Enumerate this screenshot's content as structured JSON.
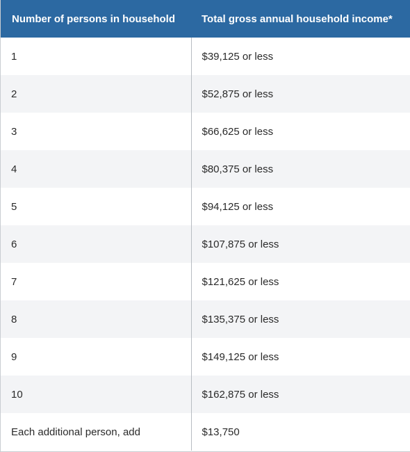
{
  "table": {
    "headers": [
      "Number of persons in household",
      "Total gross annual household income*"
    ],
    "rows": [
      {
        "persons": "1",
        "income": "$39,125 or less"
      },
      {
        "persons": "2",
        "income": "$52,875 or less"
      },
      {
        "persons": "3",
        "income": "$66,625 or less"
      },
      {
        "persons": "4",
        "income": "$80,375 or less"
      },
      {
        "persons": "5",
        "income": "$94,125 or less"
      },
      {
        "persons": "6",
        "income": "$107,875 or less"
      },
      {
        "persons": "7",
        "income": "$121,625 or less"
      },
      {
        "persons": "8",
        "income": "$135,375 or less"
      },
      {
        "persons": "9",
        "income": "$149,125 or less"
      },
      {
        "persons": "10",
        "income": "$162,875 or less"
      },
      {
        "persons": "Each additional person, add",
        "income": "$13,750"
      }
    ],
    "colors": {
      "header_bg": "#2c69a2",
      "header_text": "#ffffff",
      "row_alt_bg": "#f3f4f6",
      "body_text": "#2a2a2a"
    }
  }
}
